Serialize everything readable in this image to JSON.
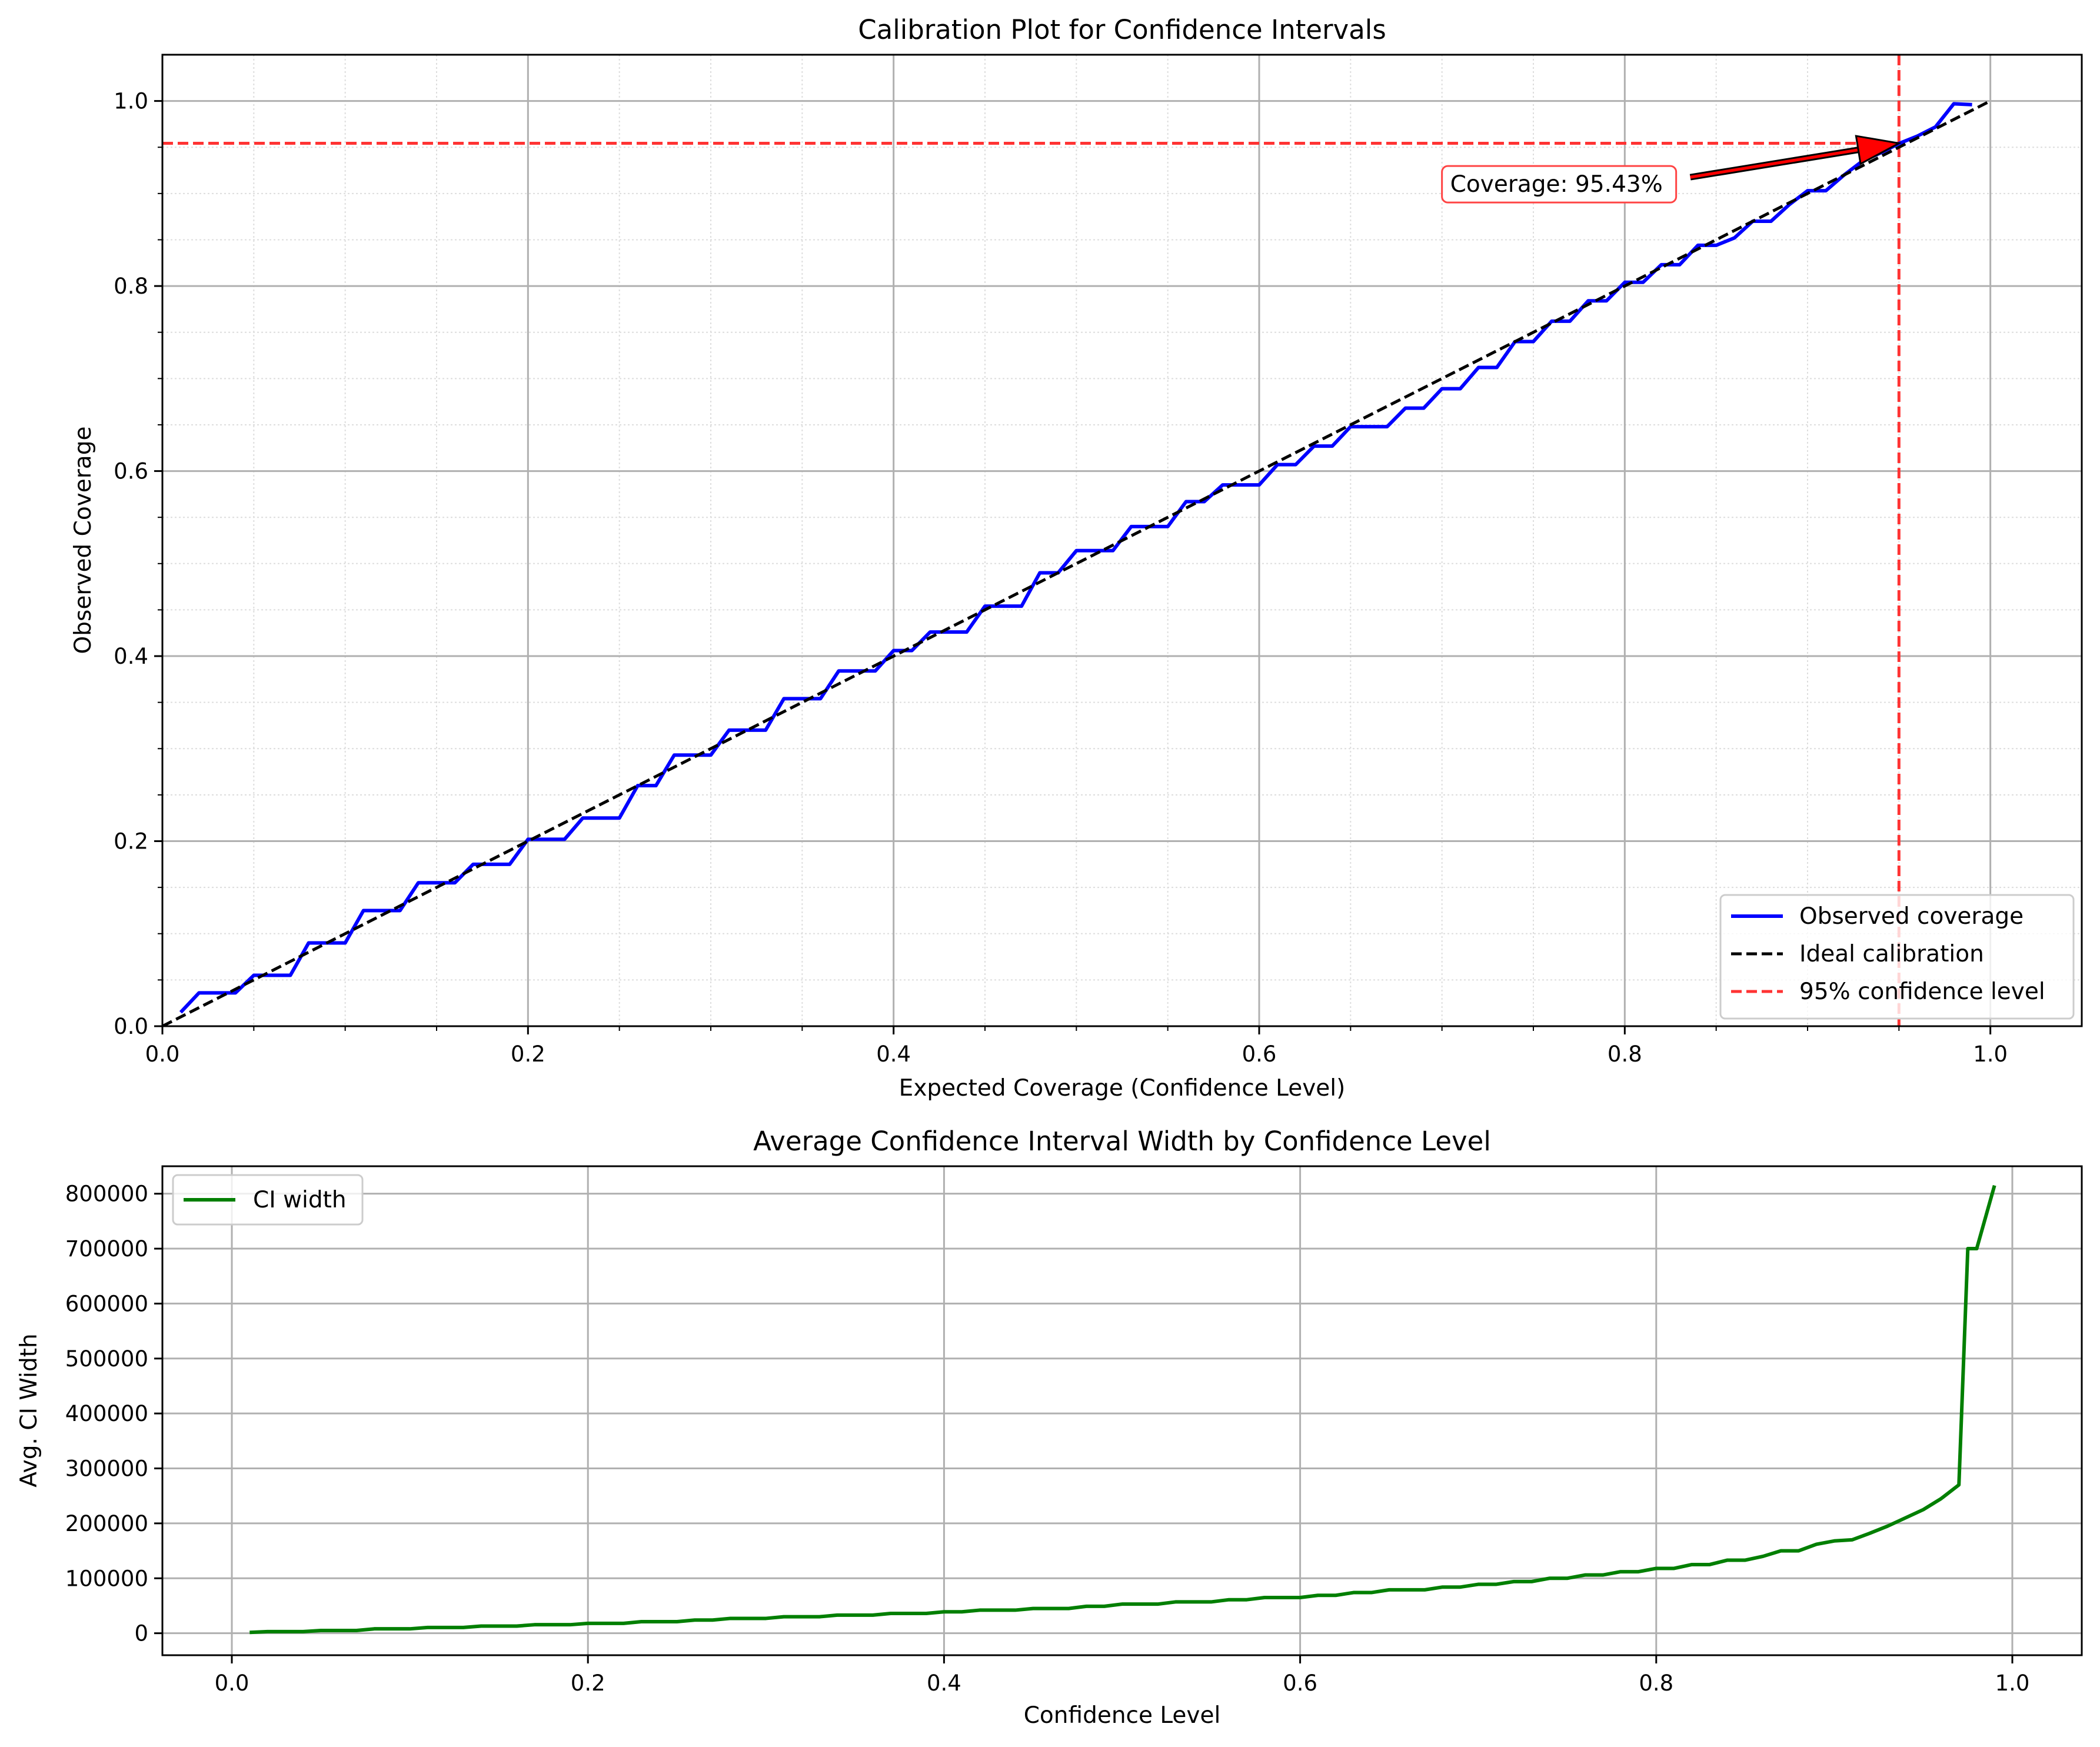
{
  "colors": {
    "observed": "#0000ff",
    "ideal": "#000000",
    "confidence": "#ff3333",
    "ci_width": "#007f00",
    "grid_major": "#b0b0b0",
    "grid_minor": "#dddddd",
    "annot_arrow": "#ff0000",
    "annot_border": "#ff4444"
  },
  "chart_data": [
    {
      "type": "line",
      "title": "Calibration Plot for Confidence Intervals",
      "xlabel": "Expected Coverage (Confidence Level)",
      "ylabel": "Observed Coverage",
      "xlim": [
        0.0,
        1.05
      ],
      "ylim": [
        0.0,
        1.05
      ],
      "xticks": [
        0.0,
        0.2,
        0.4,
        0.6,
        0.8,
        1.0
      ],
      "yticks": [
        0.0,
        0.2,
        0.4,
        0.6,
        0.8,
        1.0
      ],
      "xtick_labels": [
        "0.0",
        "0.2",
        "0.4",
        "0.6",
        "0.8",
        "1.0"
      ],
      "ytick_labels": [
        "0.0",
        "0.2",
        "0.4",
        "0.6",
        "0.8",
        "1.0"
      ],
      "grid": "major and minor",
      "legend_position": "lower right",
      "series": [
        {
          "name": "Observed coverage",
          "style": "solid",
          "x": [
            0.01,
            0.02,
            0.03,
            0.04,
            0.05,
            0.06,
            0.07,
            0.08,
            0.09,
            0.1,
            0.11,
            0.12,
            0.13,
            0.14,
            0.15,
            0.16,
            0.17,
            0.18,
            0.19,
            0.2,
            0.21,
            0.22,
            0.23,
            0.24,
            0.25,
            0.26,
            0.27,
            0.28,
            0.29,
            0.3,
            0.31,
            0.32,
            0.33,
            0.34,
            0.35,
            0.36,
            0.37,
            0.38,
            0.39,
            0.4,
            0.41,
            0.42,
            0.43,
            0.44,
            0.45,
            0.46,
            0.47,
            0.48,
            0.49,
            0.5,
            0.51,
            0.52,
            0.53,
            0.54,
            0.55,
            0.56,
            0.57,
            0.58,
            0.59,
            0.6,
            0.61,
            0.62,
            0.63,
            0.64,
            0.65,
            0.66,
            0.67,
            0.68,
            0.69,
            0.7,
            0.71,
            0.72,
            0.73,
            0.74,
            0.75,
            0.76,
            0.77,
            0.78,
            0.79,
            0.8,
            0.81,
            0.82,
            0.83,
            0.84,
            0.85,
            0.86,
            0.87,
            0.88,
            0.89,
            0.9,
            0.91,
            0.92,
            0.93,
            0.94,
            0.95,
            0.96,
            0.97,
            0.98,
            0.99
          ],
          "y": [
            0.015,
            0.036,
            0.036,
            0.036,
            0.055,
            0.055,
            0.055,
            0.09,
            0.09,
            0.09,
            0.125,
            0.125,
            0.125,
            0.155,
            0.155,
            0.155,
            0.175,
            0.175,
            0.175,
            0.202,
            0.202,
            0.202,
            0.225,
            0.225,
            0.225,
            0.26,
            0.26,
            0.293,
            0.293,
            0.293,
            0.32,
            0.32,
            0.32,
            0.354,
            0.354,
            0.354,
            0.384,
            0.384,
            0.384,
            0.406,
            0.406,
            0.426,
            0.426,
            0.426,
            0.454,
            0.454,
            0.454,
            0.49,
            0.49,
            0.514,
            0.514,
            0.514,
            0.54,
            0.54,
            0.54,
            0.567,
            0.567,
            0.585,
            0.585,
            0.585,
            0.607,
            0.607,
            0.627,
            0.627,
            0.648,
            0.648,
            0.648,
            0.668,
            0.668,
            0.689,
            0.689,
            0.712,
            0.712,
            0.74,
            0.74,
            0.762,
            0.762,
            0.784,
            0.784,
            0.804,
            0.804,
            0.823,
            0.823,
            0.844,
            0.844,
            0.852,
            0.87,
            0.87,
            0.888,
            0.903,
            0.903,
            0.92,
            0.935,
            0.944,
            0.954,
            0.962,
            0.972,
            0.997,
            0.996
          ]
        },
        {
          "name": "Ideal calibration",
          "style": "dashed",
          "x": [
            0.0,
            1.0
          ],
          "y": [
            0.0,
            1.0
          ]
        },
        {
          "name": "95% confidence level",
          "style": "dashed",
          "vline_x": 0.95,
          "hline_y": 0.9543
        }
      ],
      "annotation": {
        "text": "Coverage: 95.43%",
        "point": [
          0.95,
          0.9543
        ],
        "text_at": [
          0.7,
          0.91
        ]
      }
    },
    {
      "type": "line",
      "title": "Average Confidence Interval Width by Confidence Level",
      "xlabel": "Confidence Level",
      "ylabel": "Avg. CI Width",
      "xlim": [
        -0.039,
        1.039
      ],
      "ylim": [
        -40000,
        850000
      ],
      "xticks": [
        0.0,
        0.2,
        0.4,
        0.6,
        0.8,
        1.0
      ],
      "yticks": [
        0,
        100000,
        200000,
        300000,
        400000,
        500000,
        600000,
        700000,
        800000
      ],
      "xtick_labels": [
        "0.0",
        "0.2",
        "0.4",
        "0.6",
        "0.8",
        "1.0"
      ],
      "ytick_labels": [
        "0",
        "100000",
        "200000",
        "300000",
        "400000",
        "500000",
        "600000",
        "700000",
        "800000"
      ],
      "grid": "major",
      "legend_position": "upper left",
      "series": [
        {
          "name": "CI width",
          "style": "solid",
          "x": [
            0.01,
            0.02,
            0.03,
            0.04,
            0.05,
            0.06,
            0.07,
            0.08,
            0.09,
            0.1,
            0.11,
            0.12,
            0.13,
            0.14,
            0.15,
            0.16,
            0.17,
            0.18,
            0.19,
            0.2,
            0.21,
            0.22,
            0.23,
            0.24,
            0.25,
            0.26,
            0.27,
            0.28,
            0.29,
            0.3,
            0.31,
            0.32,
            0.33,
            0.34,
            0.35,
            0.36,
            0.37,
            0.38,
            0.39,
            0.4,
            0.41,
            0.42,
            0.43,
            0.44,
            0.45,
            0.46,
            0.47,
            0.48,
            0.49,
            0.5,
            0.51,
            0.52,
            0.53,
            0.54,
            0.55,
            0.56,
            0.57,
            0.58,
            0.59,
            0.6,
            0.61,
            0.62,
            0.63,
            0.64,
            0.65,
            0.66,
            0.67,
            0.68,
            0.69,
            0.7,
            0.71,
            0.72,
            0.73,
            0.74,
            0.75,
            0.76,
            0.77,
            0.78,
            0.79,
            0.8,
            0.81,
            0.82,
            0.83,
            0.84,
            0.85,
            0.86,
            0.87,
            0.88,
            0.89,
            0.9,
            0.91,
            0.92,
            0.93,
            0.94,
            0.95,
            0.96,
            0.97,
            0.975,
            0.98,
            0.99
          ],
          "y": [
            1500,
            3000,
            3000,
            3000,
            5000,
            5000,
            5000,
            8000,
            8000,
            8000,
            10500,
            10500,
            10500,
            13000,
            13000,
            13000,
            15500,
            15500,
            15500,
            18000,
            18000,
            18000,
            21000,
            21000,
            21000,
            24000,
            24000,
            27000,
            27000,
            27000,
            30000,
            30000,
            30000,
            33000,
            33000,
            33000,
            36000,
            36000,
            36000,
            39000,
            39000,
            42000,
            42000,
            42000,
            45000,
            45000,
            45000,
            49000,
            49000,
            53000,
            53000,
            53000,
            57000,
            57000,
            57000,
            61000,
            61000,
            65000,
            65000,
            65000,
            69000,
            69000,
            74000,
            74000,
            79000,
            79000,
            79000,
            84000,
            84000,
            89000,
            89000,
            94000,
            94000,
            100000,
            100000,
            106000,
            106000,
            112000,
            112000,
            118000,
            118000,
            125000,
            125000,
            133000,
            133000,
            140000,
            150000,
            150000,
            162000,
            168000,
            170000,
            182000,
            195000,
            210000,
            225000,
            245000,
            270000,
            700000,
            700000,
            815000
          ]
        }
      ]
    }
  ]
}
